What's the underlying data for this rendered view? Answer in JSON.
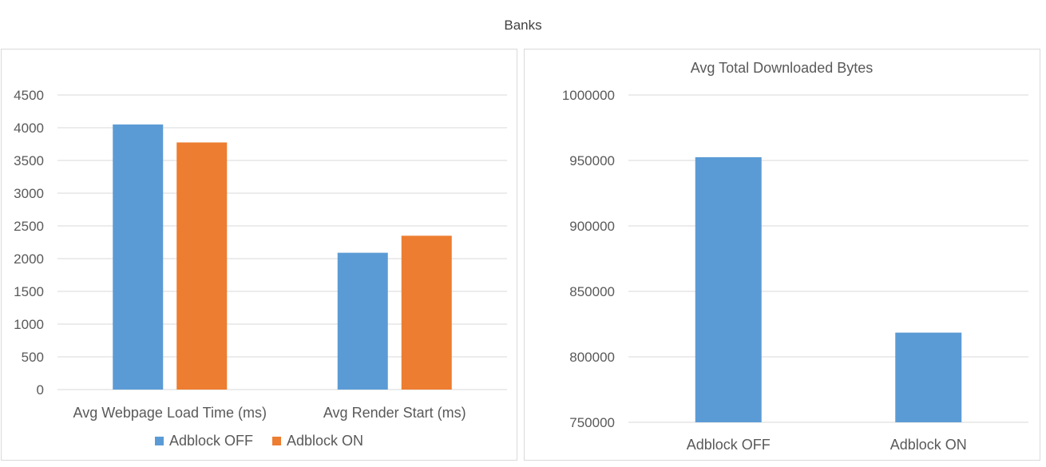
{
  "page_title": "Banks",
  "colors": {
    "adblock_off": "#5b9bd5",
    "adblock_on": "#ed7d31",
    "grid": "#d9d9d9",
    "text": "#595959"
  },
  "chart_data": [
    {
      "type": "bar",
      "title": "",
      "categories": [
        "Avg Webpage Load Time (ms)",
        "Avg Render Start (ms)"
      ],
      "series": [
        {
          "name": "Adblock OFF",
          "values": [
            4050,
            2090
          ]
        },
        {
          "name": "Adblock ON",
          "values": [
            3775,
            2350
          ]
        }
      ],
      "ylim": [
        0,
        4500
      ],
      "yticks": [
        0,
        500,
        1000,
        1500,
        2000,
        2500,
        3000,
        3500,
        4000,
        4500
      ],
      "grid": true,
      "legend": "bottom"
    },
    {
      "type": "bar",
      "title": "Avg Total Downloaded Bytes",
      "categories": [
        "Adblock OFF",
        "Adblock ON"
      ],
      "values": [
        952500,
        818500
      ],
      "ylim": [
        750000,
        1000000
      ],
      "yticks": [
        750000,
        800000,
        850000,
        900000,
        950000,
        1000000
      ],
      "grid": true
    }
  ]
}
